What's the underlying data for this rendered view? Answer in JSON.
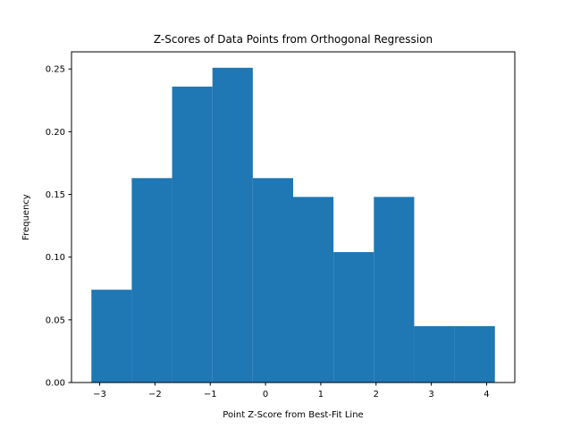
{
  "chart_data": {
    "type": "bar",
    "subtype": "histogram",
    "title": "Z-Scores of Data Points from Orthogonal Regression",
    "xlabel": "Point Z-Score from Best-Fit Line",
    "ylabel": "Frequency",
    "bin_edges": [
      -3.15,
      -2.42,
      -1.69,
      -0.96,
      -0.23,
      0.5,
      1.23,
      1.96,
      2.69,
      3.42,
      4.15
    ],
    "values": [
      0.074,
      0.163,
      0.236,
      0.251,
      0.163,
      0.148,
      0.104,
      0.148,
      0.045,
      0.045
    ],
    "xlim": [
      -3.51,
      4.51
    ],
    "ylim": [
      0,
      0.2637
    ],
    "xticks": [
      -3,
      -2,
      -1,
      0,
      1,
      2,
      3,
      4
    ],
    "xtick_labels": [
      "−3",
      "−2",
      "−1",
      "0",
      "1",
      "2",
      "3",
      "4"
    ],
    "yticks": [
      0,
      0.05,
      0.1,
      0.15,
      0.2,
      0.25
    ],
    "ytick_labels": [
      "0.00",
      "0.05",
      "0.10",
      "0.15",
      "0.20",
      "0.25"
    ],
    "grid": false,
    "legend": "none",
    "colors": {
      "bar": "#1f77b4",
      "axis": "#000000"
    }
  }
}
